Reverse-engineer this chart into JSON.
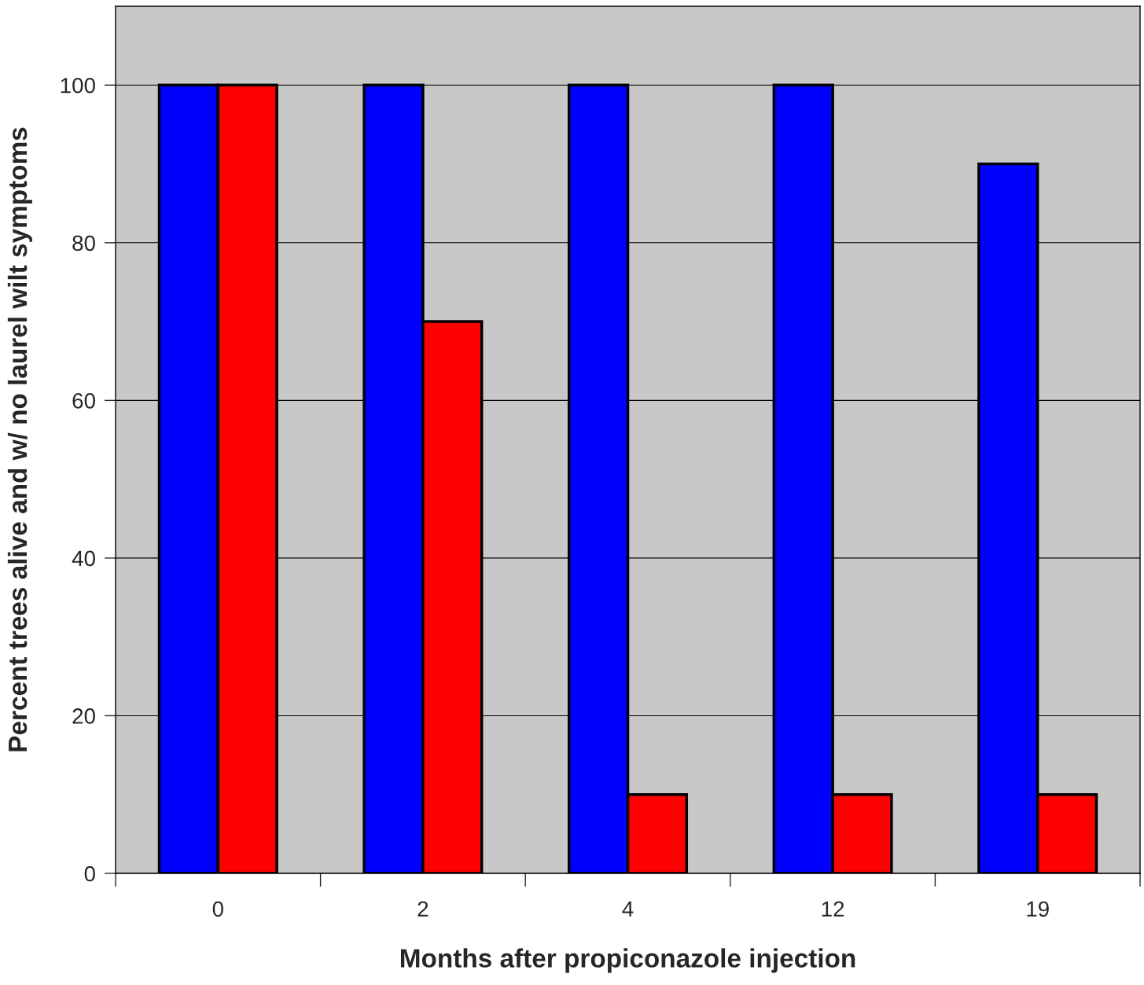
{
  "chart_data": {
    "type": "bar",
    "xlabel": "Months after propiconazole injection",
    "ylabel": "Percent trees alive and w/ no laurel wilt symptoms",
    "categories": [
      "0",
      "2",
      "4",
      "12",
      "19"
    ],
    "series": [
      {
        "color": "#0000ff",
        "values": [
          100,
          100,
          100,
          100,
          90
        ]
      },
      {
        "color": "#ff0000",
        "values": [
          100,
          70,
          10,
          10,
          10
        ]
      }
    ],
    "ylim": [
      0,
      110
    ],
    "yticks": [
      0,
      20,
      40,
      60,
      80,
      100
    ],
    "grid": "y",
    "legend": false
  }
}
